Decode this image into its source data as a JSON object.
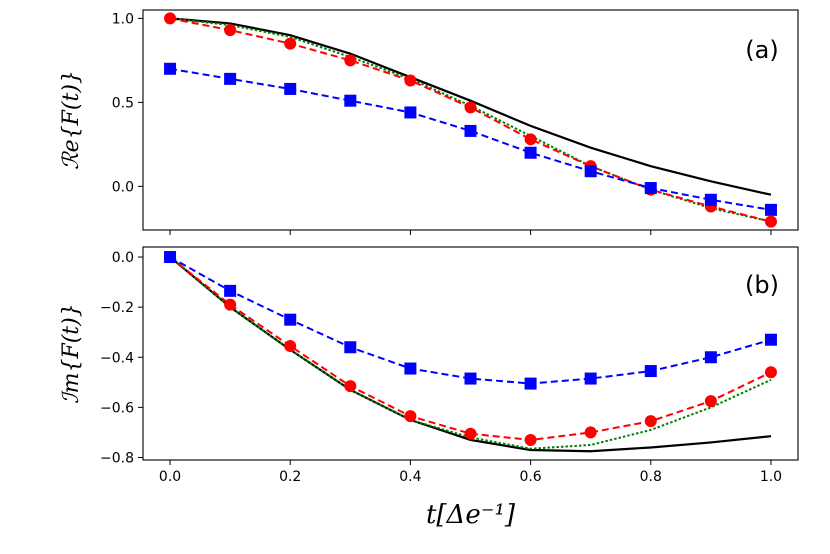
{
  "chart_data": [
    {
      "type": "line",
      "panel_label": "(a)",
      "ylabel": "ℛe{F(t)}",
      "xlabel": "",
      "xlim": [
        -0.045,
        1.045
      ],
      "ylim": [
        -0.26,
        1.05
      ],
      "x_ticks": [
        0.0,
        0.2,
        0.4,
        0.6,
        0.8,
        1.0
      ],
      "y_ticks": [
        0.0,
        0.5,
        1.0
      ],
      "y_tick_labels": [
        "0.0",
        "0.5",
        "1.0"
      ],
      "x_tick_labels_shown": false,
      "grid": false,
      "series": [
        {
          "color": "#000000",
          "style": "solid",
          "marker": "none",
          "x": [
            0.0,
            0.1,
            0.2,
            0.3,
            0.4,
            0.5,
            0.6,
            0.7,
            0.8,
            0.9,
            1.0
          ],
          "values": [
            1.0,
            0.97,
            0.9,
            0.79,
            0.65,
            0.51,
            0.36,
            0.23,
            0.12,
            0.03,
            -0.05
          ]
        },
        {
          "color": "#008000",
          "style": "dotted",
          "marker": "none",
          "x": [
            0.0,
            0.1,
            0.2,
            0.3,
            0.4,
            0.5,
            0.6,
            0.7,
            0.8,
            0.9,
            1.0
          ],
          "values": [
            1.0,
            0.96,
            0.89,
            0.77,
            0.64,
            0.48,
            0.3,
            0.12,
            -0.02,
            -0.13,
            -0.21
          ]
        },
        {
          "color": "#ff0000",
          "style": "dashed",
          "marker": "circle",
          "x": [
            0.0,
            0.1,
            0.2,
            0.3,
            0.4,
            0.5,
            0.6,
            0.7,
            0.8,
            0.9,
            1.0
          ],
          "values": [
            1.0,
            0.93,
            0.85,
            0.75,
            0.63,
            0.47,
            0.28,
            0.12,
            -0.02,
            -0.12,
            -0.21
          ]
        },
        {
          "color": "#0000ff",
          "style": "dashed",
          "marker": "square",
          "x": [
            0.0,
            0.1,
            0.2,
            0.3,
            0.4,
            0.5,
            0.6,
            0.7,
            0.8,
            0.9,
            1.0
          ],
          "values": [
            0.7,
            0.64,
            0.58,
            0.51,
            0.44,
            0.33,
            0.2,
            0.09,
            -0.01,
            -0.08,
            -0.14
          ]
        }
      ]
    },
    {
      "type": "line",
      "panel_label": "(b)",
      "ylabel": "ℐm{F(t)}",
      "xlabel": "t[Δe⁻¹]",
      "xlim": [
        -0.045,
        1.045
      ],
      "ylim": [
        -0.81,
        0.04
      ],
      "x_ticks": [
        0.0,
        0.2,
        0.4,
        0.6,
        0.8,
        1.0
      ],
      "x_tick_labels": [
        "0.0",
        "0.2",
        "0.4",
        "0.6",
        "0.8",
        "1.0"
      ],
      "y_ticks": [
        -0.8,
        -0.6,
        -0.4,
        -0.2,
        0.0
      ],
      "y_tick_labels": [
        "−0.8",
        "−0.6",
        "−0.4",
        "−0.2",
        "0.0"
      ],
      "grid": false,
      "series": [
        {
          "color": "#000000",
          "style": "solid",
          "marker": "none",
          "x": [
            0.0,
            0.1,
            0.2,
            0.3,
            0.4,
            0.5,
            0.6,
            0.7,
            0.8,
            0.9,
            1.0
          ],
          "values": [
            0.0,
            -0.2,
            -0.37,
            -0.53,
            -0.65,
            -0.73,
            -0.77,
            -0.775,
            -0.76,
            -0.74,
            -0.715
          ]
        },
        {
          "color": "#008000",
          "style": "dotted",
          "marker": "none",
          "x": [
            0.0,
            0.1,
            0.2,
            0.3,
            0.4,
            0.5,
            0.6,
            0.7,
            0.8,
            0.9,
            1.0
          ],
          "values": [
            0.0,
            -0.2,
            -0.37,
            -0.53,
            -0.65,
            -0.72,
            -0.765,
            -0.75,
            -0.69,
            -0.6,
            -0.49
          ]
        },
        {
          "color": "#ff0000",
          "style": "dashed",
          "marker": "circle",
          "x": [
            0.0,
            0.1,
            0.2,
            0.3,
            0.4,
            0.5,
            0.6,
            0.7,
            0.8,
            0.9,
            1.0
          ],
          "values": [
            0.0,
            -0.19,
            -0.355,
            -0.515,
            -0.635,
            -0.705,
            -0.73,
            -0.7,
            -0.655,
            -0.575,
            -0.46
          ]
        },
        {
          "color": "#0000ff",
          "style": "dashed",
          "marker": "square",
          "x": [
            0.0,
            0.1,
            0.2,
            0.3,
            0.4,
            0.5,
            0.6,
            0.7,
            0.8,
            0.9,
            1.0
          ],
          "values": [
            0.0,
            -0.135,
            -0.25,
            -0.36,
            -0.445,
            -0.485,
            -0.505,
            -0.485,
            -0.455,
            -0.4,
            -0.33
          ]
        }
      ]
    }
  ]
}
